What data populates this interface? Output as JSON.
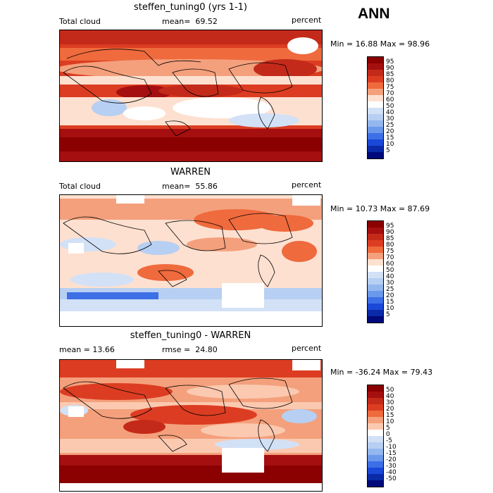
{
  "season": "ANN",
  "panels": [
    {
      "title": "steffen_tuning0 (yrs 1-1)",
      "left_label": "Total cloud",
      "stat_label": "mean=",
      "stat_value": "69.52",
      "right_label": "percent",
      "min_text": "Min =  16.88 Max =  98.96",
      "levels": [
        "95",
        "90",
        "85",
        "80",
        "75",
        "70",
        "60",
        "50",
        "40",
        "30",
        "25",
        "20",
        "15",
        "10",
        "5"
      ],
      "colors": [
        "#8b0000",
        "#a50f0f",
        "#c42a1a",
        "#dc3d22",
        "#ef6a3d",
        "#f4a07c",
        "#fde0d0",
        "#ffffff",
        "#d2e1f6",
        "#b7cff2",
        "#94b7ee",
        "#6b98ea",
        "#3d6fe6",
        "#1b48d8",
        "#0a2aa8",
        "#000a7a"
      ]
    },
    {
      "title": "WARREN",
      "left_label": "Total cloud",
      "stat_label": "mean=",
      "stat_value": "55.86",
      "right_label": "percent",
      "min_text": "Min =  10.73 Max =  87.69",
      "levels": [
        "95",
        "90",
        "85",
        "80",
        "75",
        "70",
        "60",
        "50",
        "40",
        "30",
        "25",
        "20",
        "15",
        "10",
        "5"
      ],
      "colors": [
        "#8b0000",
        "#a50f0f",
        "#c42a1a",
        "#dc3d22",
        "#ef6a3d",
        "#f4a07c",
        "#fde0d0",
        "#ffffff",
        "#d2e1f6",
        "#b7cff2",
        "#94b7ee",
        "#6b98ea",
        "#3d6fe6",
        "#1b48d8",
        "#0a2aa8",
        "#000a7a"
      ]
    },
    {
      "title": "steffen_tuning0 - WARREN",
      "left_label": "mean =  13.66",
      "stat_label": "rmse =",
      "stat_value": "24.80",
      "right_label": "percent",
      "min_text": "Min = -36.24 Max =  79.43",
      "levels": [
        "50",
        "40",
        "30",
        "20",
        "15",
        "10",
        "5",
        "0",
        "-5",
        "-10",
        "-15",
        "-20",
        "-30",
        "-40",
        "-50"
      ],
      "colors": [
        "#8b0000",
        "#a50f0f",
        "#c42a1a",
        "#dc3d22",
        "#ef6a3d",
        "#f4a07c",
        "#fbc9b0",
        "#ffffff",
        "#d2e1f6",
        "#b7cff2",
        "#94b7ee",
        "#6b98ea",
        "#3d6fe6",
        "#1b48d8",
        "#0a2aa8",
        "#000a7a"
      ]
    }
  ]
}
